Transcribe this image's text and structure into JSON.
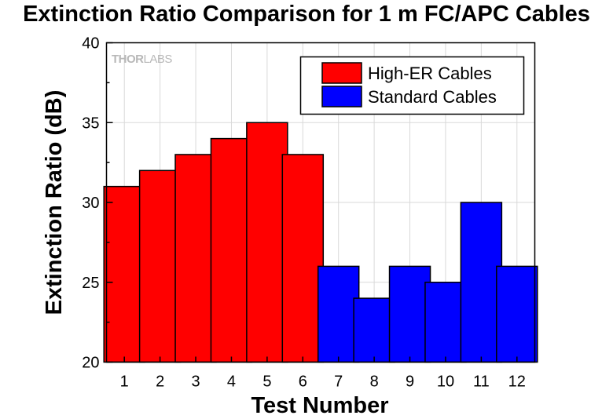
{
  "chart_data": {
    "type": "bar",
    "title": "Extinction Ratio Comparison for 1 m FC/APC Cables",
    "xlabel": "Test Number",
    "ylabel": "Extinction Ratio (dB)",
    "categories": [
      "1",
      "2",
      "3",
      "4",
      "5",
      "6",
      "7",
      "8",
      "9",
      "10",
      "11",
      "12"
    ],
    "series": [
      {
        "name": "High-ER Cables",
        "color": "#ff0000",
        "values": [
          31,
          32,
          33,
          34,
          35,
          33,
          null,
          null,
          null,
          null,
          null,
          null
        ]
      },
      {
        "name": "Standard Cables",
        "color": "#0000ff",
        "values": [
          null,
          null,
          null,
          null,
          null,
          null,
          26,
          24,
          26,
          25,
          30,
          26
        ]
      }
    ],
    "ylim": [
      20,
      40
    ],
    "yticks": [
      20,
      25,
      30,
      35,
      40
    ],
    "grid": true,
    "legend_position": "top-right",
    "watermark": {
      "brand_a": "THOR",
      "brand_b": "LABS"
    }
  }
}
